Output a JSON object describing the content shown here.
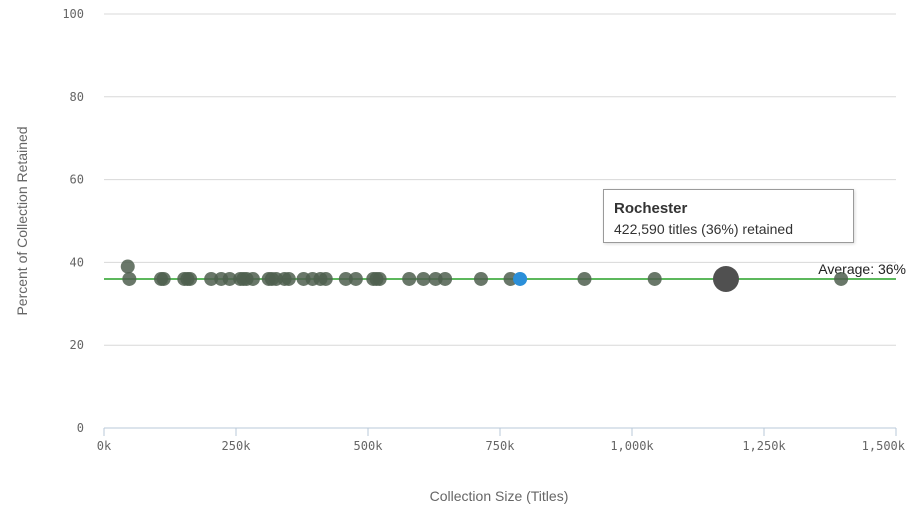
{
  "chart_data": {
    "type": "scatter",
    "title": "",
    "xlabel": "Collection Size (Titles)",
    "ylabel": "Percent of Collection Retained",
    "xlim": [
      0,
      1500000
    ],
    "ylim": [
      0,
      100
    ],
    "x_ticks": [
      "0k",
      "250k",
      "500k",
      "750k",
      "1,000k",
      "1,250k",
      "1,500k"
    ],
    "y_ticks": [
      "0",
      "20",
      "40",
      "60",
      "80",
      "100"
    ],
    "grid": "horizontal",
    "average": {
      "value": 36,
      "label": "Average: 36%",
      "color": "#5cb85c"
    },
    "colors": {
      "point": "#4f5f4f",
      "dark_point": "#2a3a2a",
      "highlight": "#2b8fd9",
      "hover": "#505050"
    },
    "points": [
      {
        "x": 45000,
        "y": 39
      },
      {
        "x": 48000,
        "y": 36
      },
      {
        "x": 108000,
        "y": 36
      },
      {
        "x": 113000,
        "y": 36
      },
      {
        "x": 152000,
        "y": 36
      },
      {
        "x": 158000,
        "y": 36
      },
      {
        "x": 163000,
        "y": 36
      },
      {
        "x": 203000,
        "y": 36
      },
      {
        "x": 222000,
        "y": 36
      },
      {
        "x": 238000,
        "y": 36
      },
      {
        "x": 258000,
        "y": 36
      },
      {
        "x": 264000,
        "y": 36
      },
      {
        "x": 270000,
        "y": 36
      },
      {
        "x": 282000,
        "y": 36
      },
      {
        "x": 312000,
        "y": 36
      },
      {
        "x": 318000,
        "y": 36
      },
      {
        "x": 326000,
        "y": 36
      },
      {
        "x": 342000,
        "y": 36
      },
      {
        "x": 350000,
        "y": 36
      },
      {
        "x": 378000,
        "y": 36
      },
      {
        "x": 395000,
        "y": 36
      },
      {
        "x": 410000,
        "y": 36
      },
      {
        "x": 420000,
        "y": 36
      },
      {
        "x": 458000,
        "y": 36
      },
      {
        "x": 477000,
        "y": 36
      },
      {
        "x": 510000,
        "y": 36
      },
      {
        "x": 516000,
        "y": 36
      },
      {
        "x": 522000,
        "y": 36
      },
      {
        "x": 578000,
        "y": 36
      },
      {
        "x": 605000,
        "y": 36
      },
      {
        "x": 628000,
        "y": 36
      },
      {
        "x": 646000,
        "y": 36
      },
      {
        "x": 714000,
        "y": 36
      },
      {
        "x": 770000,
        "y": 36
      },
      {
        "x": 788000,
        "y": 36,
        "highlight": true
      },
      {
        "x": 910000,
        "y": 36
      },
      {
        "x": 1043000,
        "y": 36
      },
      {
        "x": 1178000,
        "y": 36,
        "hover": true
      },
      {
        "x": 1396000,
        "y": 36
      }
    ],
    "tooltip": {
      "title": "Rochester",
      "body": "422,590 titles (36%) retained"
    }
  }
}
